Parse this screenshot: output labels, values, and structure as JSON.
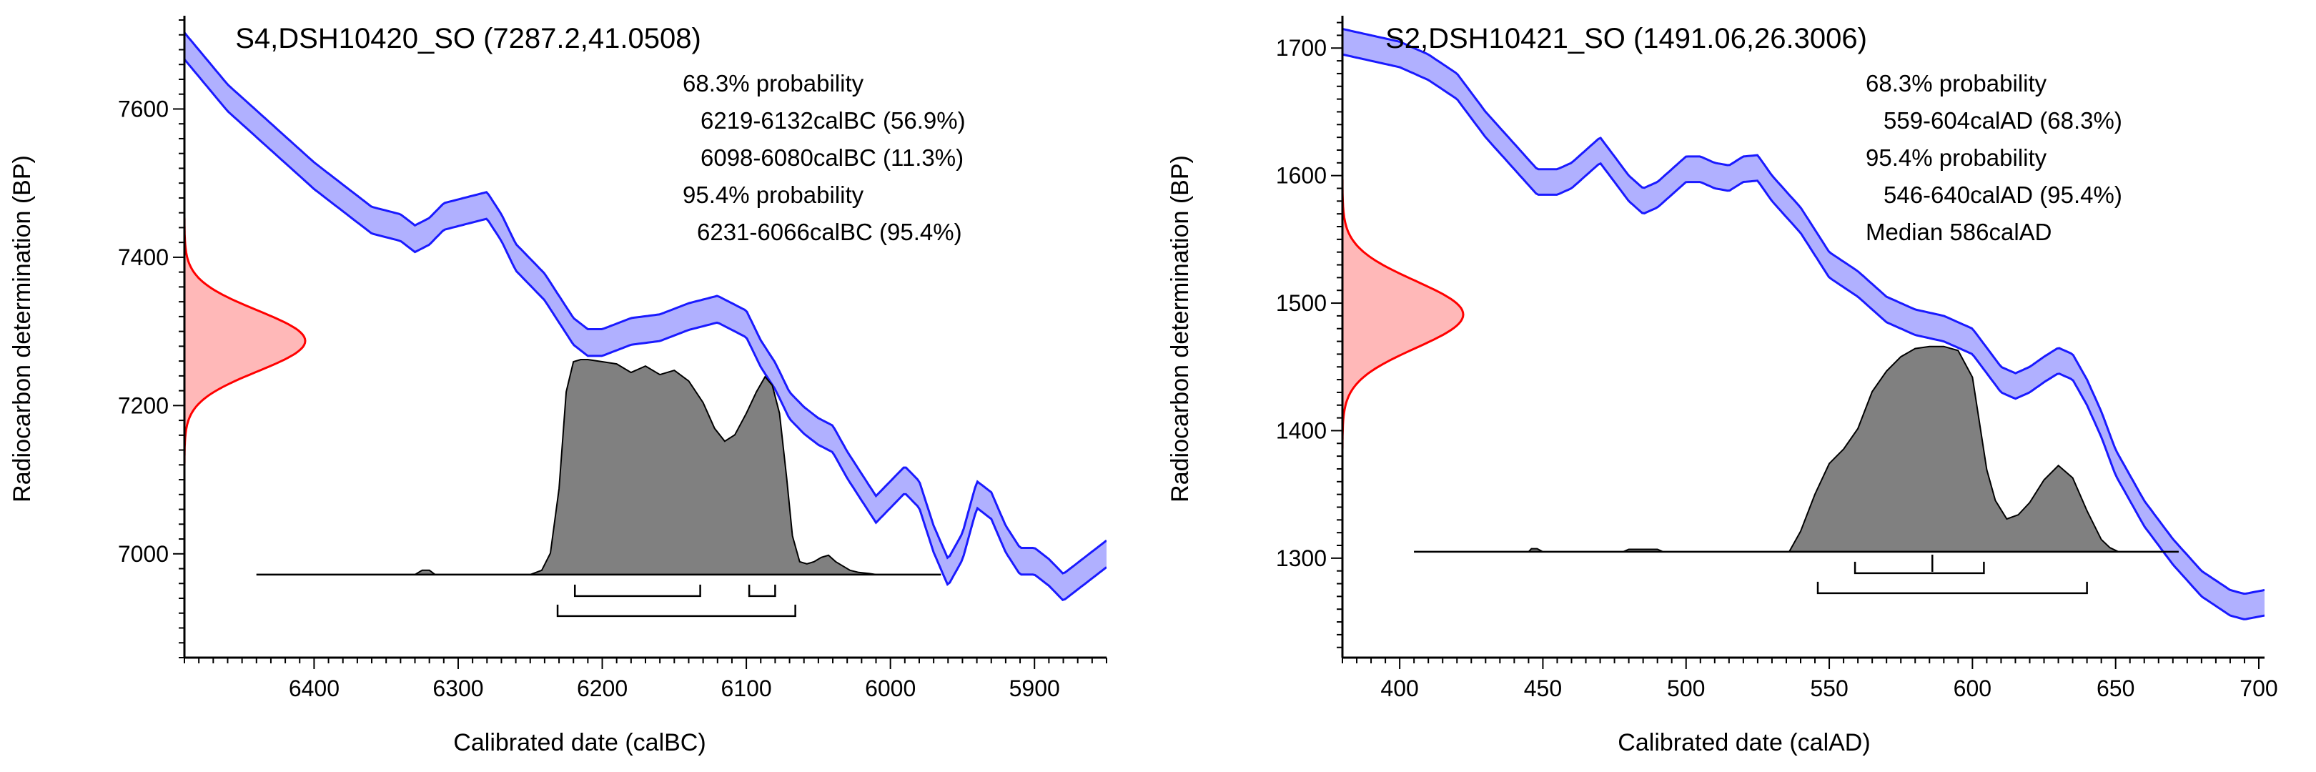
{
  "chart_data": [
    {
      "type": "area",
      "title": "S4,DSH10420_SO (7287.2,41.0508)",
      "xlabel": "Calibrated date (calBC)",
      "ylabel": "Radiocarbon determination (BP)",
      "xlim": [
        6490,
        5850
      ],
      "ylim": [
        6860,
        7720
      ],
      "x_ticks": [
        6400,
        6300,
        6200,
        6100,
        6000,
        5900
      ],
      "y_ticks": [
        7000,
        7200,
        7400,
        7600
      ],
      "x_minor_step": 10,
      "y_minor_step": 20,
      "info_lines": [
        "68.3% probability",
        "6219-6132calBC (56.9%)",
        "6098-6080calBC (11.3%)",
        "95.4% probability",
        "6231-6066calBC (95.4%)"
      ],
      "radiocarbon_measurement": {
        "mean": 7287.2,
        "sigma": 41.0508
      },
      "calibration_curve": {
        "x": [
          6490,
          6475,
          6460,
          6440,
          6420,
          6400,
          6380,
          6360,
          6340,
          6330,
          6320,
          6310,
          6300,
          6280,
          6270,
          6260,
          6250,
          6240,
          6230,
          6220,
          6210,
          6200,
          6180,
          6160,
          6140,
          6120,
          6100,
          6090,
          6080,
          6070,
          6060,
          6050,
          6040,
          6030,
          6020,
          6010,
          6000,
          5990,
          5980,
          5970,
          5960,
          5950,
          5940,
          5930,
          5920,
          5910,
          5900,
          5890,
          5880,
          5870,
          5860,
          5850
        ],
        "y": [
          7685,
          7650,
          7615,
          7580,
          7545,
          7510,
          7480,
          7450,
          7440,
          7425,
          7435,
          7455,
          7460,
          7470,
          7440,
          7400,
          7380,
          7360,
          7330,
          7300,
          7285,
          7285,
          7300,
          7305,
          7320,
          7330,
          7310,
          7270,
          7240,
          7200,
          7180,
          7165,
          7155,
          7120,
          7090,
          7060,
          7080,
          7100,
          7080,
          7020,
          6975,
          7010,
          7080,
          7065,
          7020,
          6990,
          6990,
          6975,
          6955,
          6970,
          6985,
          7000
        ],
        "half_width": 18
      },
      "measurement_density": {
        "range": [
          7120,
          7460
        ]
      },
      "posterior_density": {
        "baseline_y": 6972,
        "peak_y": 7262,
        "x": [
          6440,
          6330,
          6325,
          6320,
          6316,
          6250,
          6242,
          6236,
          6230,
          6225,
          6220,
          6215,
          6210,
          6200,
          6190,
          6180,
          6170,
          6160,
          6150,
          6140,
          6130,
          6122,
          6115,
          6108,
          6100,
          6093,
          6087,
          6082,
          6077,
          6072,
          6068,
          6063,
          6058,
          6053,
          6048,
          6043,
          6038,
          6033,
          6028,
          6022,
          6015,
          6010,
          5965
        ],
        "values": [
          0,
          0,
          0.02,
          0.02,
          0,
          0,
          0.02,
          0.1,
          0.4,
          0.85,
          0.99,
          1.0,
          1.0,
          0.99,
          0.98,
          0.94,
          0.97,
          0.93,
          0.95,
          0.9,
          0.8,
          0.68,
          0.62,
          0.65,
          0.75,
          0.85,
          0.92,
          0.88,
          0.75,
          0.45,
          0.18,
          0.06,
          0.05,
          0.06,
          0.08,
          0.09,
          0.06,
          0.04,
          0.02,
          0.01,
          0.005,
          0,
          0
        ]
      },
      "range_brackets_68": [
        [
          6219,
          6132
        ],
        [
          6098,
          6080
        ]
      ],
      "range_brackets_95": [
        [
          6231,
          6066
        ]
      ],
      "median": null
    },
    {
      "type": "area",
      "title": "S2,DSH10421_SO (1491.06,26.3006)",
      "xlabel": "Calibrated date (calAD)",
      "ylabel": "Radiocarbon determination (BP)",
      "xlim": [
        380,
        702
      ],
      "ylim": [
        1222,
        1722
      ],
      "x_ticks": [
        400,
        450,
        500,
        550,
        600,
        650,
        700
      ],
      "y_ticks": [
        1300,
        1400,
        1500,
        1600,
        1700
      ],
      "x_minor_step": 5,
      "y_minor_step": 10,
      "info_lines": [
        "68.3% probability",
        "559-604calAD (68.3%)",
        "95.4% probability",
        "546-640calAD (95.4%)",
        "Median 586calAD"
      ],
      "radiocarbon_measurement": {
        "mean": 1491.06,
        "sigma": 26.3006
      },
      "calibration_curve": {
        "x": [
          380,
          390,
          400,
          410,
          420,
          430,
          440,
          448,
          455,
          460,
          465,
          470,
          475,
          480,
          485,
          490,
          495,
          500,
          505,
          510,
          515,
          520,
          525,
          530,
          540,
          550,
          560,
          570,
          580,
          590,
          600,
          605,
          610,
          615,
          620,
          625,
          630,
          635,
          640,
          645,
          650,
          660,
          670,
          680,
          690,
          695,
          702
        ],
        "y": [
          1705,
          1700,
          1695,
          1685,
          1670,
          1640,
          1615,
          1595,
          1595,
          1600,
          1610,
          1620,
          1605,
          1590,
          1580,
          1585,
          1595,
          1605,
          1605,
          1600,
          1598,
          1605,
          1606,
          1590,
          1565,
          1530,
          1515,
          1495,
          1485,
          1480,
          1470,
          1455,
          1440,
          1435,
          1440,
          1448,
          1455,
          1450,
          1430,
          1405,
          1375,
          1335,
          1305,
          1280,
          1265,
          1262,
          1265
        ],
        "half_width": 10
      },
      "measurement_density": {
        "range": [
          1385,
          1597
        ]
      },
      "posterior_density": {
        "baseline_y": 1305,
        "peak_y": 1466,
        "x": [
          405,
          445,
          446,
          448,
          450,
          478,
          480,
          485,
          490,
          492,
          536,
          540,
          545,
          550,
          555,
          560,
          565,
          570,
          575,
          580,
          585,
          590,
          595,
          600,
          605,
          608,
          612,
          616,
          620,
          625,
          630,
          635,
          640,
          645,
          648,
          651,
          672
        ],
        "values": [
          0,
          0,
          0.015,
          0.015,
          0,
          0,
          0.012,
          0.012,
          0.012,
          0,
          0,
          0.1,
          0.28,
          0.43,
          0.5,
          0.6,
          0.78,
          0.88,
          0.95,
          0.99,
          1.0,
          1.0,
          0.98,
          0.85,
          0.4,
          0.25,
          0.16,
          0.18,
          0.24,
          0.35,
          0.42,
          0.36,
          0.2,
          0.06,
          0.02,
          0,
          0
        ]
      },
      "range_brackets_68": [
        [
          559,
          604
        ]
      ],
      "range_brackets_95": [
        [
          546,
          640
        ]
      ],
      "median": 586
    }
  ],
  "style": {
    "curve_color": "#1a1aff",
    "curve_fill": "#b0b0ff",
    "measurement_color": "#ff0000",
    "measurement_fill": "#ffb8b8",
    "posterior_fill": "#808080",
    "axis_color": "#000000"
  }
}
